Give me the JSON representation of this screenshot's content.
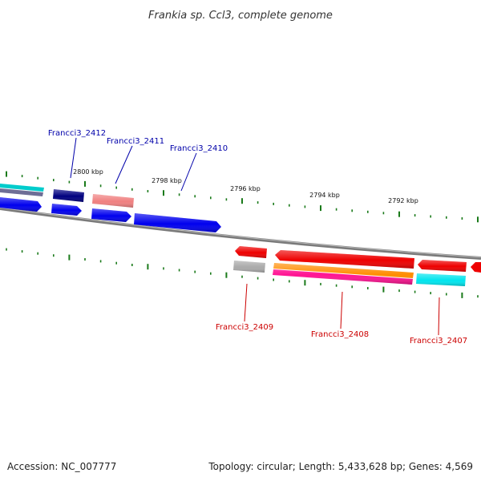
{
  "title": "Frankia sp. Ccl3, complete genome",
  "footer": {
    "accession": "Accession: NC_007777",
    "summary": "Topology: circular; Length: 5,433,628 bp; Genes: 4,569"
  },
  "colors": {
    "forward_label": "#0000aa",
    "reverse_label": "#cc0000",
    "tick": "#1a7a1a",
    "backbone": "#7a7a7a"
  },
  "kbp_labels": [
    "2800 kbp",
    "2798 kbp",
    "2796 kbp",
    "2794 kbp",
    "2792 kbp"
  ],
  "gene_labels": {
    "g2412": "Francci3_2412",
    "g2411": "Francci3_2411",
    "g2410": "Francci3_2410",
    "g2409": "Francci3_2409",
    "g2408": "Francci3_2408",
    "g2407": "Francci3_2407"
  }
}
